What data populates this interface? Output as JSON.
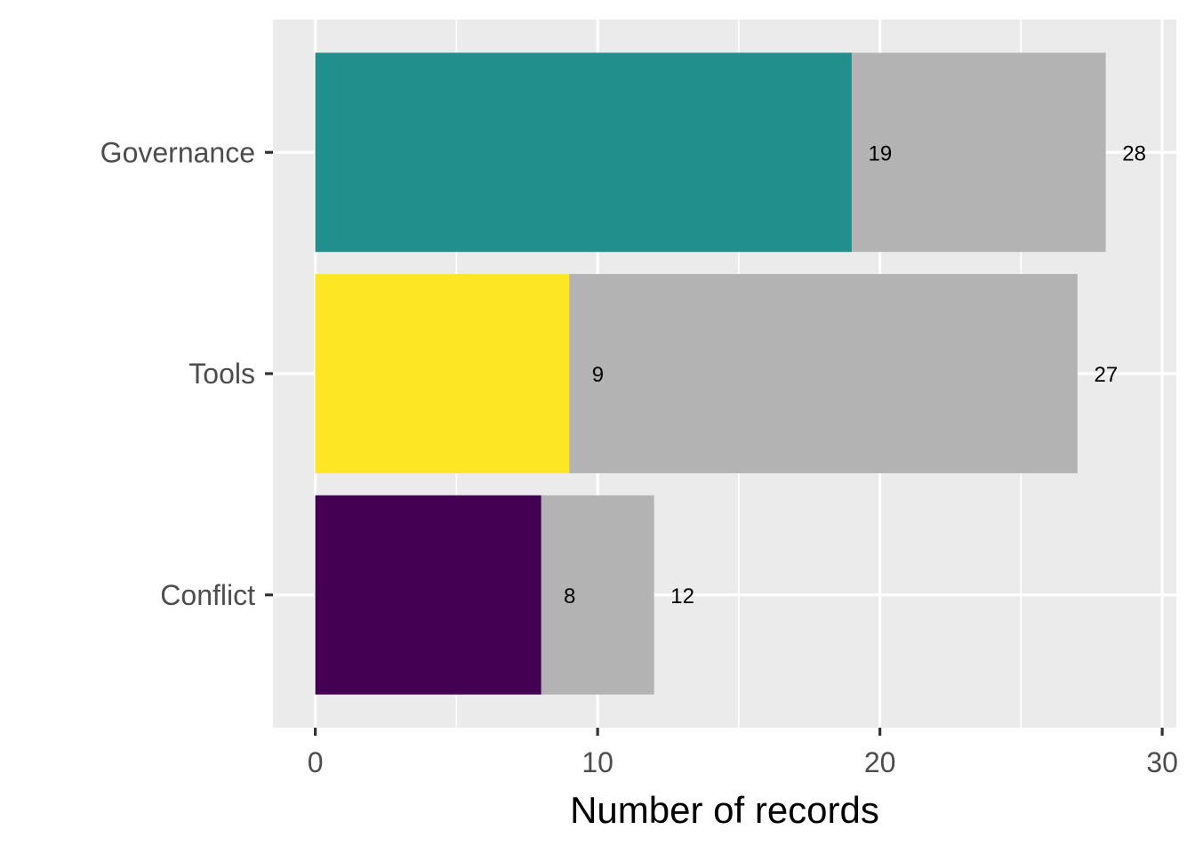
{
  "chart_data": {
    "type": "bar",
    "orientation": "horizontal",
    "barmode": "overlay",
    "categories": [
      "Conflict",
      "Tools",
      "Governance"
    ],
    "series": [
      {
        "role": "total",
        "values": [
          12,
          27,
          28
        ],
        "color": "#b3b3b3"
      },
      {
        "role": "highlight",
        "values": [
          8,
          9,
          19
        ],
        "colors": [
          "#440154",
          "#fde725",
          "#21908c"
        ]
      }
    ],
    "xlabel": "Number of records",
    "ylabel": "",
    "title": "",
    "xlim": [
      -1.5,
      30.5
    ],
    "x_ticks": [
      0,
      10,
      20,
      30
    ],
    "grid": true,
    "background": "#ebebeb",
    "gridline_color": "#ffffff",
    "legend": "none"
  }
}
